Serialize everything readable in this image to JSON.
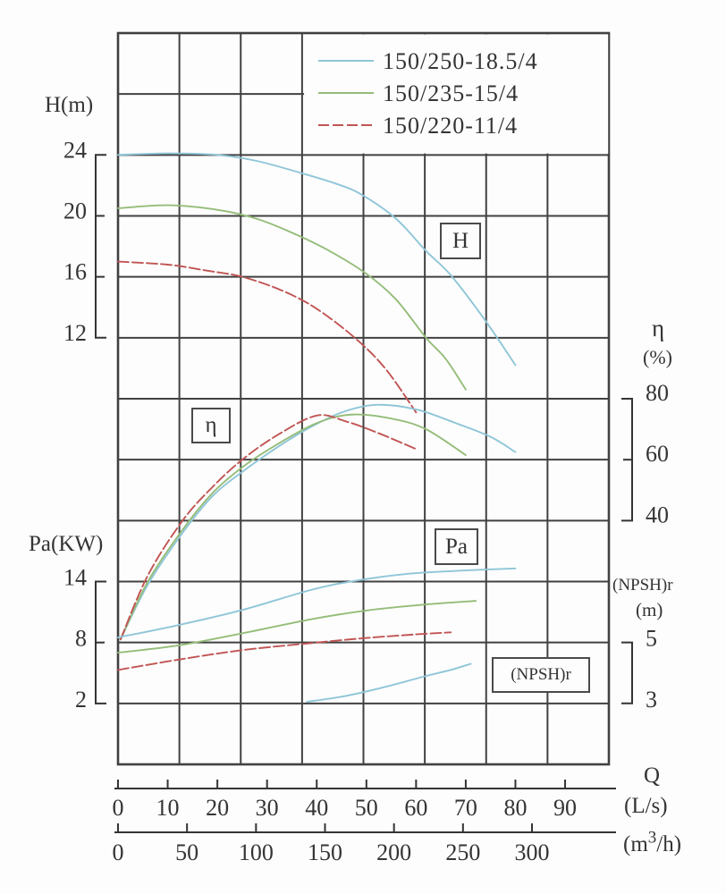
{
  "page": {
    "background": "#fdfdfd"
  },
  "colors": {
    "ink": "#343434",
    "grid": "#414141",
    "cyan": "#8fc6d8",
    "green": "#95bd7a",
    "red": "#c15454"
  },
  "chart_data": {
    "type": "line",
    "grid": "on",
    "title": "",
    "legend": {
      "position": "top-right",
      "entries": [
        {
          "label": "150/250-18.5/4",
          "color": "cyan",
          "dash": false
        },
        {
          "label": "150/235-15/4",
          "color": "green",
          "dash": false
        },
        {
          "label": "150/220-11/4",
          "color": "red",
          "dash": true
        }
      ]
    },
    "axes": {
      "H": {
        "title": "H(m)",
        "side": "left",
        "ticks": [
          "24",
          "20",
          "16",
          "12"
        ],
        "tick_values": [
          24,
          20,
          16,
          12
        ],
        "range": [
          12,
          24
        ]
      },
      "Pa": {
        "title": "Pa(KW)",
        "side": "left",
        "ticks": [
          "14",
          "8",
          "2"
        ],
        "tick_values": [
          14,
          8,
          2
        ],
        "range": [
          2,
          14
        ]
      },
      "eta": {
        "title": "η",
        "unit": "(%)",
        "side": "right",
        "ticks": [
          "80",
          "60",
          "40"
        ],
        "tick_values": [
          80,
          60,
          40
        ],
        "range": [
          40,
          80
        ]
      },
      "npshr": {
        "title": "(NPSH)r",
        "unit": "(m)",
        "side": "right",
        "ticks": [
          "5",
          "3"
        ],
        "tick_values": [
          5,
          3
        ],
        "range": [
          3,
          5
        ]
      },
      "q": {
        "title": "Q",
        "unit_primary": "(L/s)",
        "unit_secondary": "(m³/h)",
        "unit_secondary_parts": [
          "(m",
          "3",
          "/h)"
        ],
        "ticks_ls": [
          "0",
          "10",
          "20",
          "30",
          "40",
          "50",
          "60",
          "70",
          "80",
          "90"
        ],
        "tick_values_ls": [
          0,
          10,
          20,
          30,
          40,
          50,
          60,
          70,
          80,
          90
        ],
        "ticks_m3h": [
          "0",
          "50",
          "100",
          "150",
          "200",
          "250",
          "300"
        ],
        "tick_values_m3h": [
          0,
          50,
          100,
          150,
          200,
          250,
          300
        ]
      }
    },
    "curve_labels": [
      {
        "text": "H"
      },
      {
        "text": "η"
      },
      {
        "text": "Pa"
      },
      {
        "text": "(NPSH)r"
      }
    ],
    "curves": [
      {
        "quantity": "H",
        "pump": "150/250-18.5/4",
        "color": "cyan",
        "dash": false,
        "points": [
          [
            0,
            24
          ],
          [
            10,
            24.1
          ],
          [
            20,
            24
          ],
          [
            28,
            23.6
          ],
          [
            37,
            22.8
          ],
          [
            44,
            22.1
          ],
          [
            49,
            21.4
          ],
          [
            56,
            19.8
          ],
          [
            62,
            17.7
          ],
          [
            67,
            16.1
          ],
          [
            74,
            13.1
          ],
          [
            80,
            10.2
          ]
        ]
      },
      {
        "quantity": "H",
        "pump": "150/235-15/4",
        "color": "green",
        "dash": false,
        "points": [
          [
            0,
            20.5
          ],
          [
            10,
            20.7
          ],
          [
            20,
            20.4
          ],
          [
            28,
            19.8
          ],
          [
            35,
            18.9
          ],
          [
            42,
            17.8
          ],
          [
            50,
            16.2
          ],
          [
            56,
            14.5
          ],
          [
            62,
            12.0
          ],
          [
            66,
            10.6
          ],
          [
            70,
            8.6
          ]
        ]
      },
      {
        "quantity": "H",
        "pump": "150/220-11/4",
        "color": "red",
        "dash": true,
        "points": [
          [
            0,
            17.0
          ],
          [
            10,
            16.8
          ],
          [
            18,
            16.4
          ],
          [
            25,
            16.0
          ],
          [
            33,
            15.1
          ],
          [
            40,
            13.9
          ],
          [
            48,
            11.9
          ],
          [
            54,
            9.9
          ],
          [
            60,
            7.1
          ]
        ]
      },
      {
        "quantity": "eta",
        "pump": "150/250-18.5/4",
        "color": "cyan",
        "dash": false,
        "points": [
          [
            0.5,
            1
          ],
          [
            6,
            19
          ],
          [
            13,
            36
          ],
          [
            19,
            48
          ],
          [
            25,
            56
          ],
          [
            32,
            64
          ],
          [
            38,
            70
          ],
          [
            45,
            75.5
          ],
          [
            52,
            78
          ],
          [
            60,
            76.5
          ],
          [
            68,
            72
          ],
          [
            75,
            67.5
          ],
          [
            80,
            62.5
          ]
        ]
      },
      {
        "quantity": "eta",
        "pump": "150/235-15/4",
        "color": "green",
        "dash": false,
        "points": [
          [
            0.5,
            1
          ],
          [
            6,
            20
          ],
          [
            13,
            37
          ],
          [
            19,
            49
          ],
          [
            25,
            57.5
          ],
          [
            32,
            65
          ],
          [
            40,
            72
          ],
          [
            47,
            74.8
          ],
          [
            55,
            73.5
          ],
          [
            62,
            70
          ],
          [
            70,
            61.5
          ]
        ]
      },
      {
        "quantity": "eta",
        "pump": "150/220-11/4",
        "color": "red",
        "dash": true,
        "points": [
          [
            0.5,
            1
          ],
          [
            6,
            22
          ],
          [
            13,
            40
          ],
          [
            19,
            51
          ],
          [
            25,
            60
          ],
          [
            32,
            68
          ],
          [
            40,
            74.5
          ],
          [
            46,
            72.5
          ],
          [
            52,
            69
          ],
          [
            60,
            63.5
          ]
        ]
      },
      {
        "quantity": "Pa",
        "pump": "150/250-18.5/4",
        "color": "cyan",
        "dash": false,
        "points": [
          [
            0,
            8.5
          ],
          [
            12,
            9.7
          ],
          [
            25,
            11.2
          ],
          [
            39,
            13.2
          ],
          [
            48,
            14.1
          ],
          [
            58,
            14.75
          ],
          [
            68,
            15.05
          ],
          [
            80,
            15.3
          ]
        ]
      },
      {
        "quantity": "Pa",
        "pump": "150/235-15/4",
        "color": "green",
        "dash": false,
        "points": [
          [
            0,
            7.0
          ],
          [
            12,
            7.7
          ],
          [
            25,
            8.9
          ],
          [
            39,
            10.3
          ],
          [
            50,
            11.15
          ],
          [
            62,
            11.75
          ],
          [
            72,
            12.1
          ]
        ]
      },
      {
        "quantity": "Pa",
        "pump": "150/220-11/4",
        "color": "red",
        "dash": true,
        "points": [
          [
            0,
            5.3
          ],
          [
            12,
            6.3
          ],
          [
            25,
            7.25
          ],
          [
            39,
            7.95
          ],
          [
            50,
            8.45
          ],
          [
            60,
            8.8
          ],
          [
            67,
            9.0
          ]
        ]
      },
      {
        "quantity": "npshr",
        "pump": "150/250-18.5/4",
        "color": "cyan",
        "dash": false,
        "points": [
          [
            38,
            3.05
          ],
          [
            46,
            3.25
          ],
          [
            54,
            3.55
          ],
          [
            62,
            3.9
          ],
          [
            67,
            4.1
          ],
          [
            71,
            4.3
          ]
        ]
      }
    ]
  }
}
